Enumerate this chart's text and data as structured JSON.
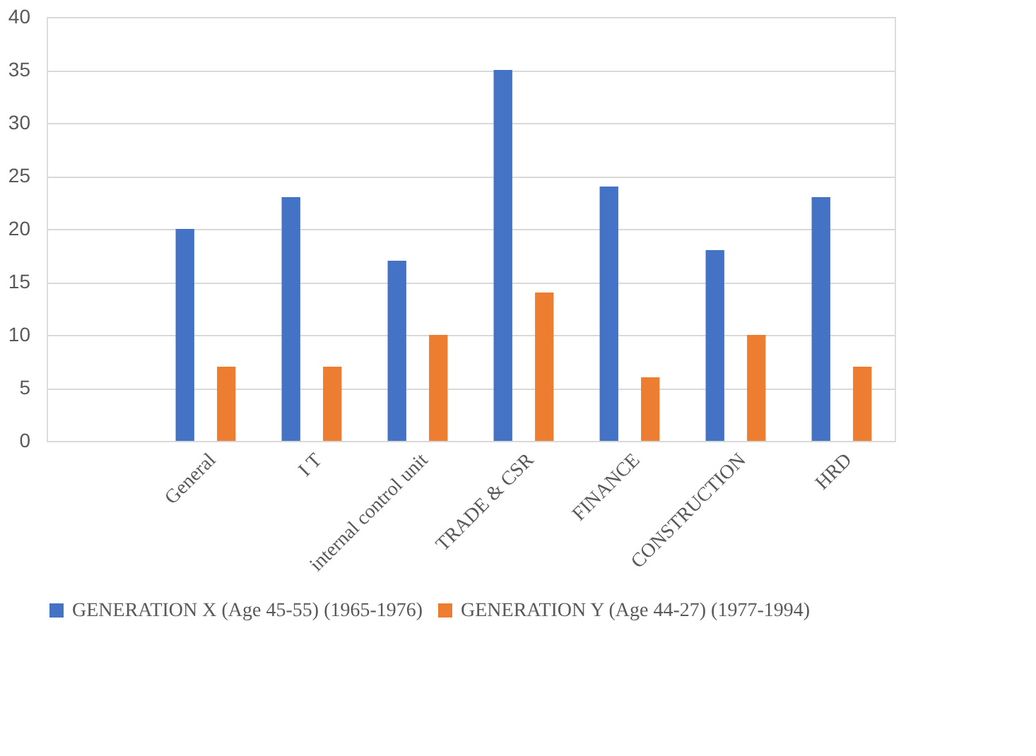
{
  "chart_data": {
    "type": "bar",
    "categories": [
      null,
      "General",
      "I T",
      "internal control unit",
      "TRADE & CSR",
      "FINANCE",
      "CONSTRUCTION",
      "HRD"
    ],
    "series": [
      {
        "name": "GENERATION X (Age 45-55) (1965-1976)",
        "color": "#4472c4",
        "values": [
          null,
          20,
          23,
          17,
          35,
          24,
          18,
          23
        ]
      },
      {
        "name": "GENERATION Y (Age 44-27) (1977-1994)",
        "color": "#ed7d31",
        "values": [
          null,
          7,
          7,
          10,
          14,
          6,
          10,
          7
        ]
      }
    ],
    "ylim": [
      0,
      40
    ],
    "yticks": [
      0,
      5,
      10,
      15,
      20,
      25,
      30,
      35,
      40
    ],
    "grid": "y",
    "legend": "bottom"
  }
}
